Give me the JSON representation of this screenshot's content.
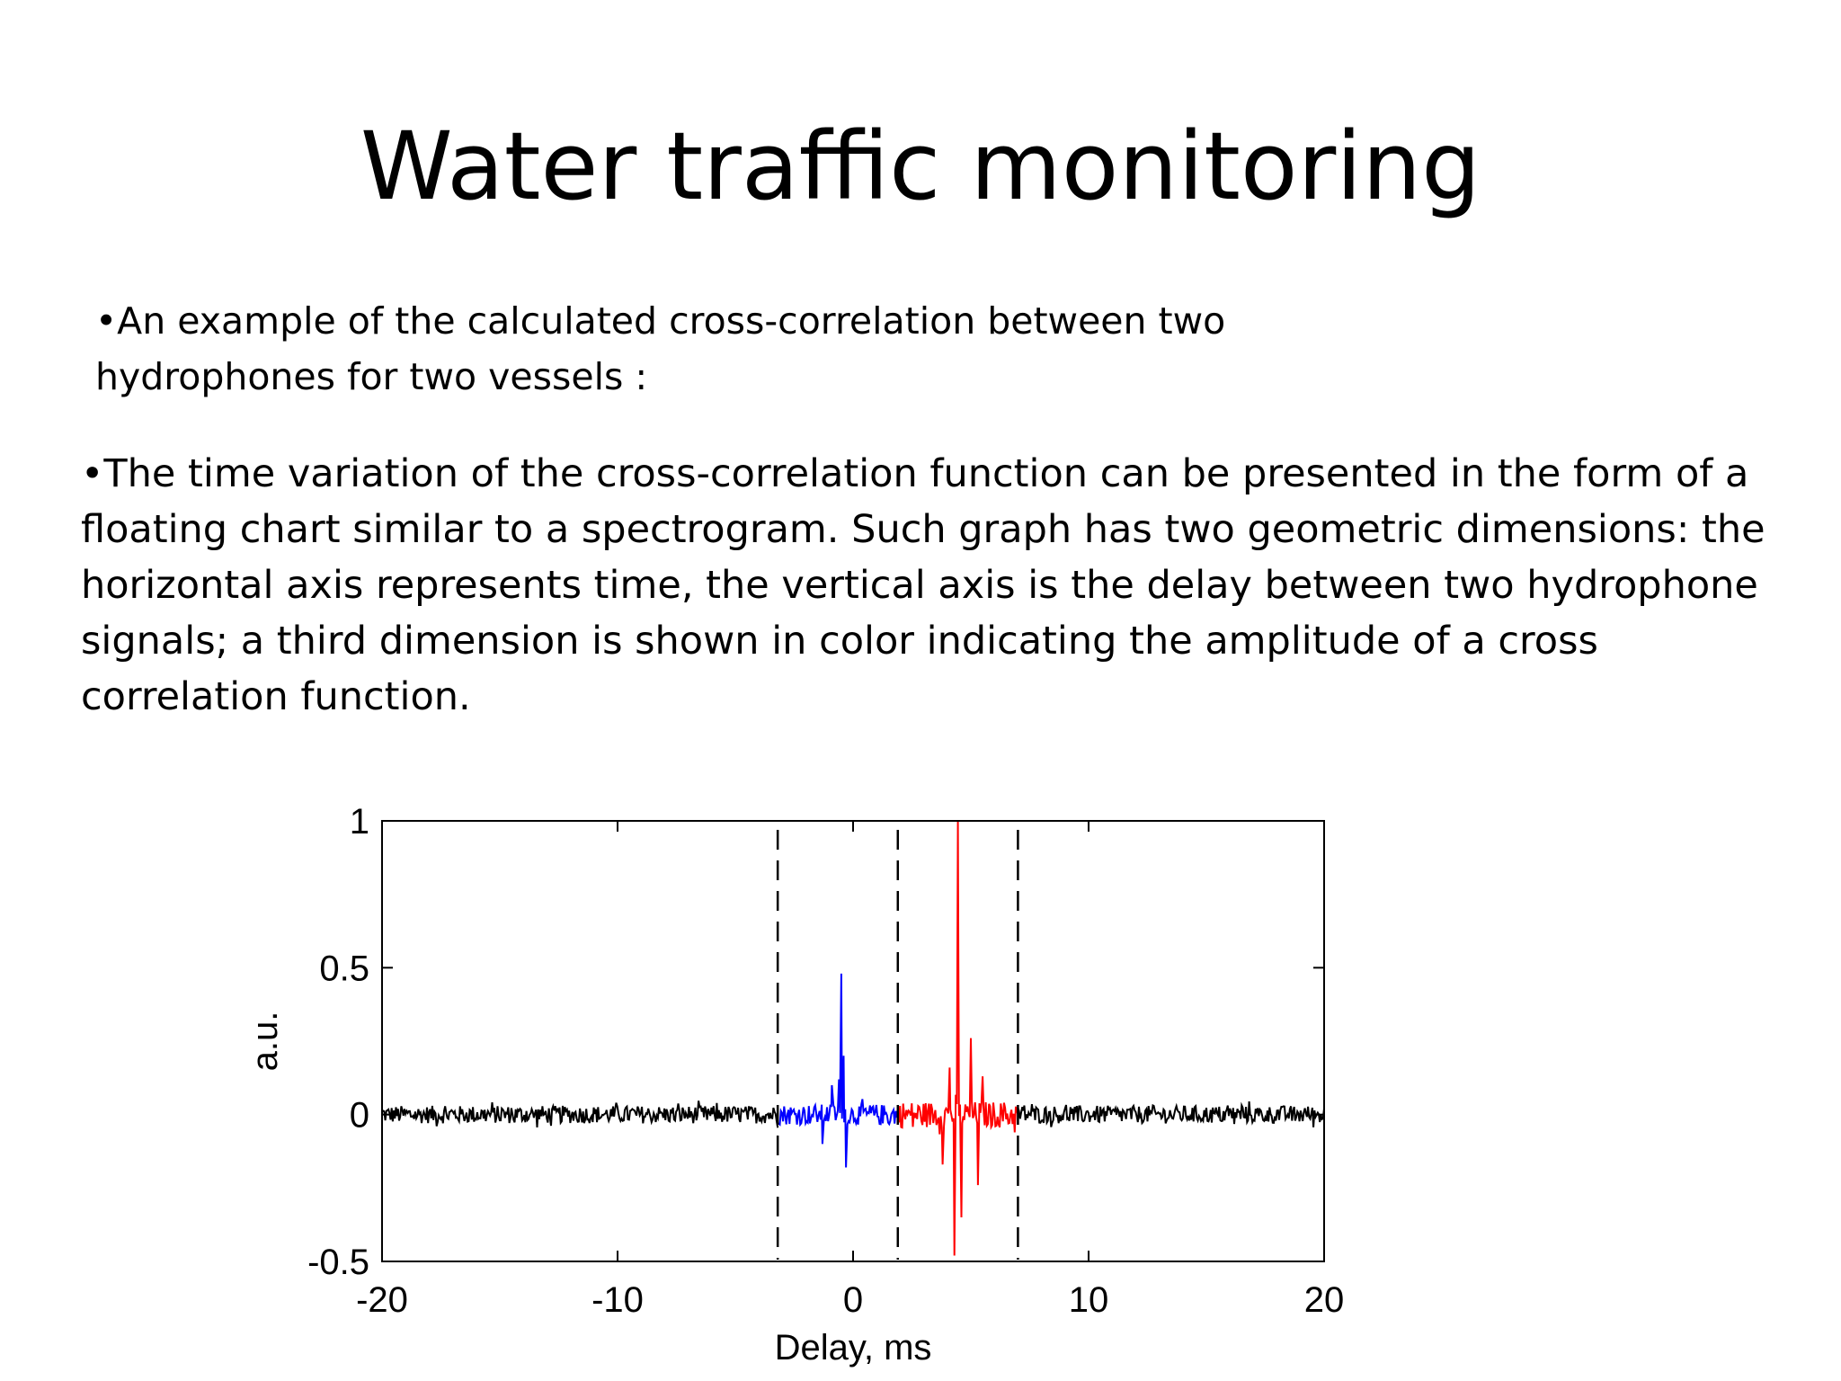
{
  "slide": {
    "title": "Water traffic monitoring",
    "bullet1": "•An example of the calculated cross-correlation between two hydrophones for two vessels :",
    "bullet2": "•The time variation of the cross-correlation function can be presented in the form of a floating chart similar to a spectrogram. Such graph has two geometric dimensions: the horizontal axis represents time, the vertical axis is the delay between two hydrophone signals; a third dimension is shown in color indicating the amplitude of a cross correlation function."
  },
  "chart_data": {
    "type": "line",
    "xlabel": "Delay, ms",
    "ylabel": "a.u.",
    "xlim": [
      -20,
      20
    ],
    "ylim": [
      -0.5,
      1
    ],
    "xticks": [
      -20,
      -10,
      0,
      10,
      20
    ],
    "yticks": [
      -0.5,
      0,
      0.5,
      1
    ],
    "xtick_labels": [
      "-20",
      "-10",
      "0",
      "10",
      "20"
    ],
    "ytick_labels": [
      "-0.5",
      "0",
      "0.5",
      "1"
    ],
    "grid": false,
    "vlines": [
      -3.2,
      1.9,
      7.0
    ],
    "vline_style": "dashed",
    "series": [
      {
        "color": "#000000",
        "x_range": [
          -20,
          -3.2
        ],
        "noise_amplitude": 0.03,
        "peaks": []
      },
      {
        "color": "#0000ff",
        "x_range": [
          -3.2,
          1.9
        ],
        "noise_amplitude": 0.035,
        "peaks": [
          {
            "x": -0.5,
            "y": 0.48
          },
          {
            "x": -0.4,
            "y": 0.2
          },
          {
            "x": -0.6,
            "y": 0.12
          },
          {
            "x": -0.3,
            "y": -0.18
          },
          {
            "x": -1.3,
            "y": -0.1
          },
          {
            "x": -0.9,
            "y": 0.1
          }
        ]
      },
      {
        "color": "#ff0000",
        "x_range": [
          1.9,
          7.0
        ],
        "noise_amplitude": 0.045,
        "peaks": [
          {
            "x": 4.45,
            "y": 1.0
          },
          {
            "x": 4.3,
            "y": -0.48
          },
          {
            "x": 4.6,
            "y": -0.35
          },
          {
            "x": 5.3,
            "y": -0.24
          },
          {
            "x": 5.0,
            "y": 0.26
          },
          {
            "x": 5.5,
            "y": 0.13
          },
          {
            "x": 3.8,
            "y": -0.17
          },
          {
            "x": 4.1,
            "y": 0.16
          }
        ]
      },
      {
        "color": "#000000",
        "x_range": [
          7.0,
          20
        ],
        "noise_amplitude": 0.03,
        "peaks": []
      }
    ]
  }
}
